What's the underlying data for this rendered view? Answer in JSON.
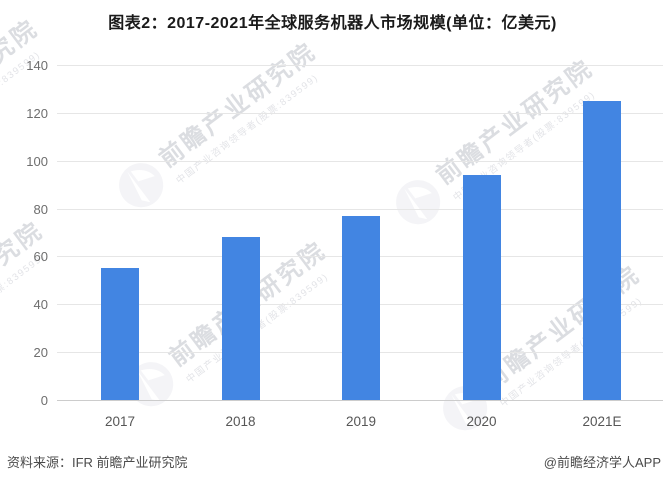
{
  "title": "图表2：2017-2021年全球服务机器人市场规模(单位：亿美元)",
  "chart_data": {
    "type": "bar",
    "title": "图表2：2017-2021年全球服务机器人市场规模(单位：亿美元)",
    "categories": [
      "2017",
      "2018",
      "2019",
      "2020",
      "2021E"
    ],
    "values": [
      55,
      68,
      77,
      94,
      125
    ],
    "xlabel": "",
    "ylabel": "",
    "unit": "亿美元",
    "ylim": [
      0,
      140
    ],
    "ytick_step": 20,
    "yticks": [
      0,
      20,
      40,
      60,
      80,
      100,
      120,
      140
    ],
    "grid": true,
    "legend": "none",
    "bar_color": "#4285e2"
  },
  "footer": {
    "source_label": "资料来源：IFR 前瞻产业研究院",
    "branding": "@前瞻经济学人APP"
  },
  "watermark": {
    "brand": "前瞻产业研究院",
    "tagline": "中国产业咨询领导者(股票:839599)"
  },
  "colors": {
    "bar": "#4285e2",
    "gridline": "#e6e6e6",
    "axis_line": "#cccccc",
    "title_text": "#1a1a1a",
    "tick_text": "#6e6e6e",
    "footer_text": "#4a4a4a",
    "background": "#ffffff"
  }
}
